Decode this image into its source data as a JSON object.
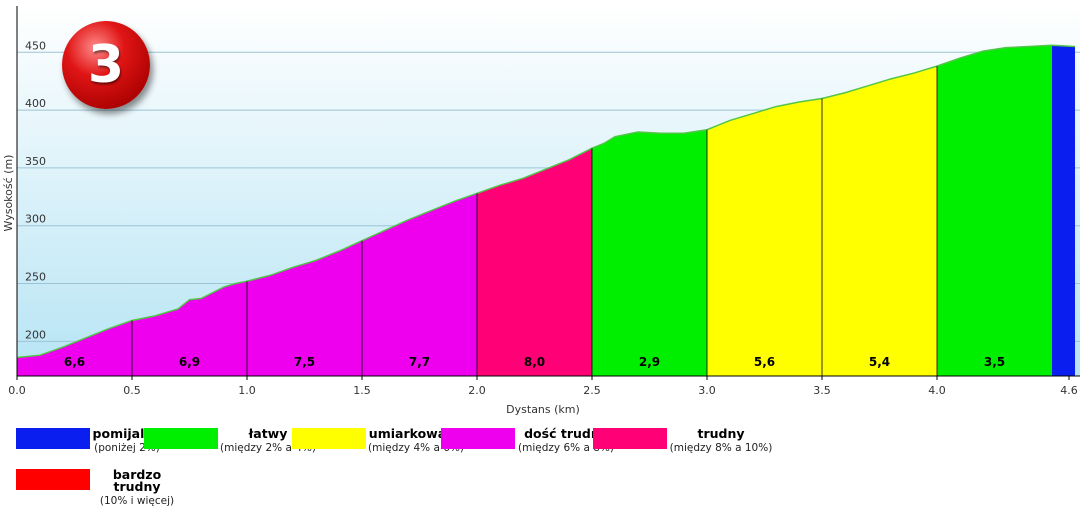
{
  "badge": {
    "number": "3"
  },
  "chart_data": {
    "type": "area",
    "xlabel": "Dystans  (km)",
    "ylabel": "Wysokość (m)",
    "xlim": [
      0,
      4.6
    ],
    "ylim": [
      170,
      490
    ],
    "x_ticks": [
      "0.0",
      "0.5",
      "1.0",
      "1.5",
      "2.0",
      "2.5",
      "3.0",
      "3.5",
      "4.0",
      "4.6"
    ],
    "x_tick_values": [
      0,
      0.5,
      1.0,
      1.5,
      2.0,
      2.5,
      3.0,
      3.5,
      4.0,
      4.6
    ],
    "y_ticks": [
      200,
      250,
      300,
      350,
      400,
      450
    ],
    "grid": true,
    "profile": [
      [
        0.0,
        186
      ],
      [
        0.1,
        188
      ],
      [
        0.2,
        195
      ],
      [
        0.3,
        203
      ],
      [
        0.4,
        211
      ],
      [
        0.5,
        218
      ],
      [
        0.6,
        222
      ],
      [
        0.7,
        228
      ],
      [
        0.75,
        236
      ],
      [
        0.8,
        237
      ],
      [
        0.9,
        247
      ],
      [
        0.95,
        250
      ],
      [
        1.0,
        252
      ],
      [
        1.1,
        257
      ],
      [
        1.2,
        264
      ],
      [
        1.3,
        270
      ],
      [
        1.4,
        278
      ],
      [
        1.5,
        287
      ],
      [
        1.6,
        296
      ],
      [
        1.7,
        305
      ],
      [
        1.8,
        313
      ],
      [
        1.9,
        321
      ],
      [
        2.0,
        328
      ],
      [
        2.1,
        335
      ],
      [
        2.2,
        341
      ],
      [
        2.3,
        349
      ],
      [
        2.4,
        357
      ],
      [
        2.5,
        367
      ],
      [
        2.55,
        371
      ],
      [
        2.6,
        377
      ],
      [
        2.7,
        381
      ],
      [
        2.8,
        380
      ],
      [
        2.9,
        380
      ],
      [
        3.0,
        383
      ],
      [
        3.1,
        391
      ],
      [
        3.2,
        397
      ],
      [
        3.3,
        403
      ],
      [
        3.4,
        407
      ],
      [
        3.5,
        410
      ],
      [
        3.6,
        415
      ],
      [
        3.7,
        421
      ],
      [
        3.8,
        427
      ],
      [
        3.9,
        432
      ],
      [
        4.0,
        438
      ],
      [
        4.1,
        445
      ],
      [
        4.2,
        451
      ],
      [
        4.3,
        454
      ],
      [
        4.4,
        455
      ],
      [
        4.5,
        456
      ],
      [
        4.6,
        455
      ]
    ],
    "segments": [
      {
        "from": 0.0,
        "to": 0.5,
        "grade": "6,6",
        "category": "dosc_trudny"
      },
      {
        "from": 0.5,
        "to": 1.0,
        "grade": "6,9",
        "category": "dosc_trudny"
      },
      {
        "from": 1.0,
        "to": 1.5,
        "grade": "7,5",
        "category": "dosc_trudny"
      },
      {
        "from": 1.5,
        "to": 2.0,
        "grade": "7,7",
        "category": "dosc_trudny"
      },
      {
        "from": 2.0,
        "to": 2.5,
        "grade": "8,0",
        "category": "trudny"
      },
      {
        "from": 2.5,
        "to": 3.0,
        "grade": "2,9",
        "category": "latwy"
      },
      {
        "from": 3.0,
        "to": 3.5,
        "grade": "5,6",
        "category": "umiarkowany"
      },
      {
        "from": 3.5,
        "to": 4.0,
        "grade": "5,4",
        "category": "umiarkowany"
      },
      {
        "from": 4.0,
        "to": 4.5,
        "grade": "3,5",
        "category": "latwy"
      },
      {
        "from": 4.5,
        "to": 4.6,
        "grade": "",
        "category": "pomijalny"
      }
    ],
    "colors": {
      "pomijalny": "#0a1ef0",
      "latwy": "#00ee00",
      "umiarkowany": "#ffff00",
      "dosc_trudny": "#ee00ee",
      "trudny": "#ff0077",
      "bardzo_trudny": "#ff0000",
      "sky_top": "#ffffff",
      "sky_bottom": "#b6e4f4",
      "gridline": "#9cc4d4",
      "profile_line": "#53c44a"
    }
  },
  "legend": [
    {
      "name": "pomijalny",
      "desc": "(poniżej 2%)",
      "color": "#0a1ef0"
    },
    {
      "name": "łatwy",
      "desc": "(między 2% a 4%)",
      "color": "#00ee00"
    },
    {
      "name": "umiarkowany",
      "desc": "(między 4% a 6%)",
      "color": "#ffff00"
    },
    {
      "name": "dość trudny",
      "desc": "(między 6% a 8%)",
      "color": "#ee00ee"
    },
    {
      "name": "trudny",
      "desc": "(między 8% a 10%)",
      "color": "#ff0077"
    },
    {
      "name": "bardzo trudny",
      "desc": "(10% i więcej)",
      "color": "#ff0000"
    }
  ]
}
